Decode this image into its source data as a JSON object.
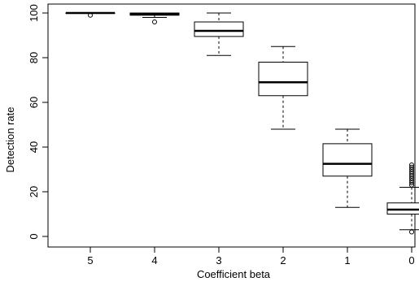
{
  "chart_data": {
    "type": "boxplot",
    "title": "",
    "xlabel": "Coefficient beta",
    "ylabel": "Detection rate",
    "ylim": [
      0,
      100
    ],
    "yticks": [
      0,
      20,
      40,
      60,
      80,
      100
    ],
    "categories": [
      "5",
      "4",
      "3",
      "2",
      "1",
      "0"
    ],
    "grid": false,
    "boxes": [
      {
        "category": "5",
        "min": 100,
        "q1": 100,
        "median": 100,
        "q3": 100,
        "max": 100,
        "outliers": [
          99
        ]
      },
      {
        "category": "4",
        "min": 98,
        "q1": 99,
        "median": 99.5,
        "q3": 100,
        "max": 100,
        "outliers": [
          96
        ]
      },
      {
        "category": "3",
        "min": 81,
        "q1": 89.5,
        "median": 92,
        "q3": 96,
        "max": 100,
        "outliers": []
      },
      {
        "category": "2",
        "min": 48,
        "q1": 63,
        "median": 69,
        "q3": 78,
        "max": 85,
        "outliers": []
      },
      {
        "category": "1",
        "min": 13,
        "q1": 27,
        "median": 32.5,
        "q3": 41.5,
        "max": 48,
        "outliers": []
      },
      {
        "category": "0",
        "min": 3,
        "q1": 10,
        "median": 12,
        "q3": 15,
        "max": 22,
        "outliers": [
          2,
          23,
          24,
          25,
          26,
          27,
          28,
          29,
          30,
          31,
          32
        ]
      }
    ]
  }
}
